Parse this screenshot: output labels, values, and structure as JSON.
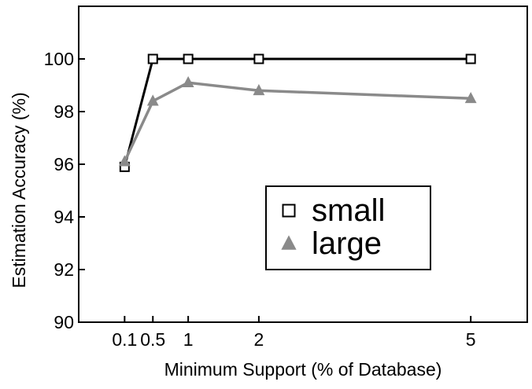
{
  "chart_data": {
    "type": "line",
    "title": "",
    "xlabel": "Minimum Support (% of Database)",
    "ylabel": "Estimation Accuracy (%)",
    "xlim": [
      -0.55,
      5.8
    ],
    "ylim": [
      90,
      102
    ],
    "xticks": [
      0.1,
      0.5,
      1,
      2,
      5
    ],
    "xtick_labels": [
      "0.1",
      "0.5",
      "1",
      "2",
      "5"
    ],
    "yticks": [
      90,
      92,
      94,
      96,
      98,
      100
    ],
    "ytick_labels": [
      "90",
      "92",
      "94",
      "96",
      "98",
      "100"
    ],
    "grid": false,
    "legend_position": "lower-right",
    "series": [
      {
        "name": "small",
        "marker": "square",
        "color": "#000000",
        "x": [
          0.1,
          0.5,
          1,
          2,
          5
        ],
        "y": [
          95.9,
          100.0,
          100.0,
          100.0,
          100.0
        ]
      },
      {
        "name": "large",
        "marker": "triangle",
        "color": "#8a8a8a",
        "x": [
          0.1,
          0.5,
          1,
          2,
          5
        ],
        "y": [
          96.1,
          98.4,
          99.1,
          98.8,
          98.5
        ]
      }
    ]
  }
}
